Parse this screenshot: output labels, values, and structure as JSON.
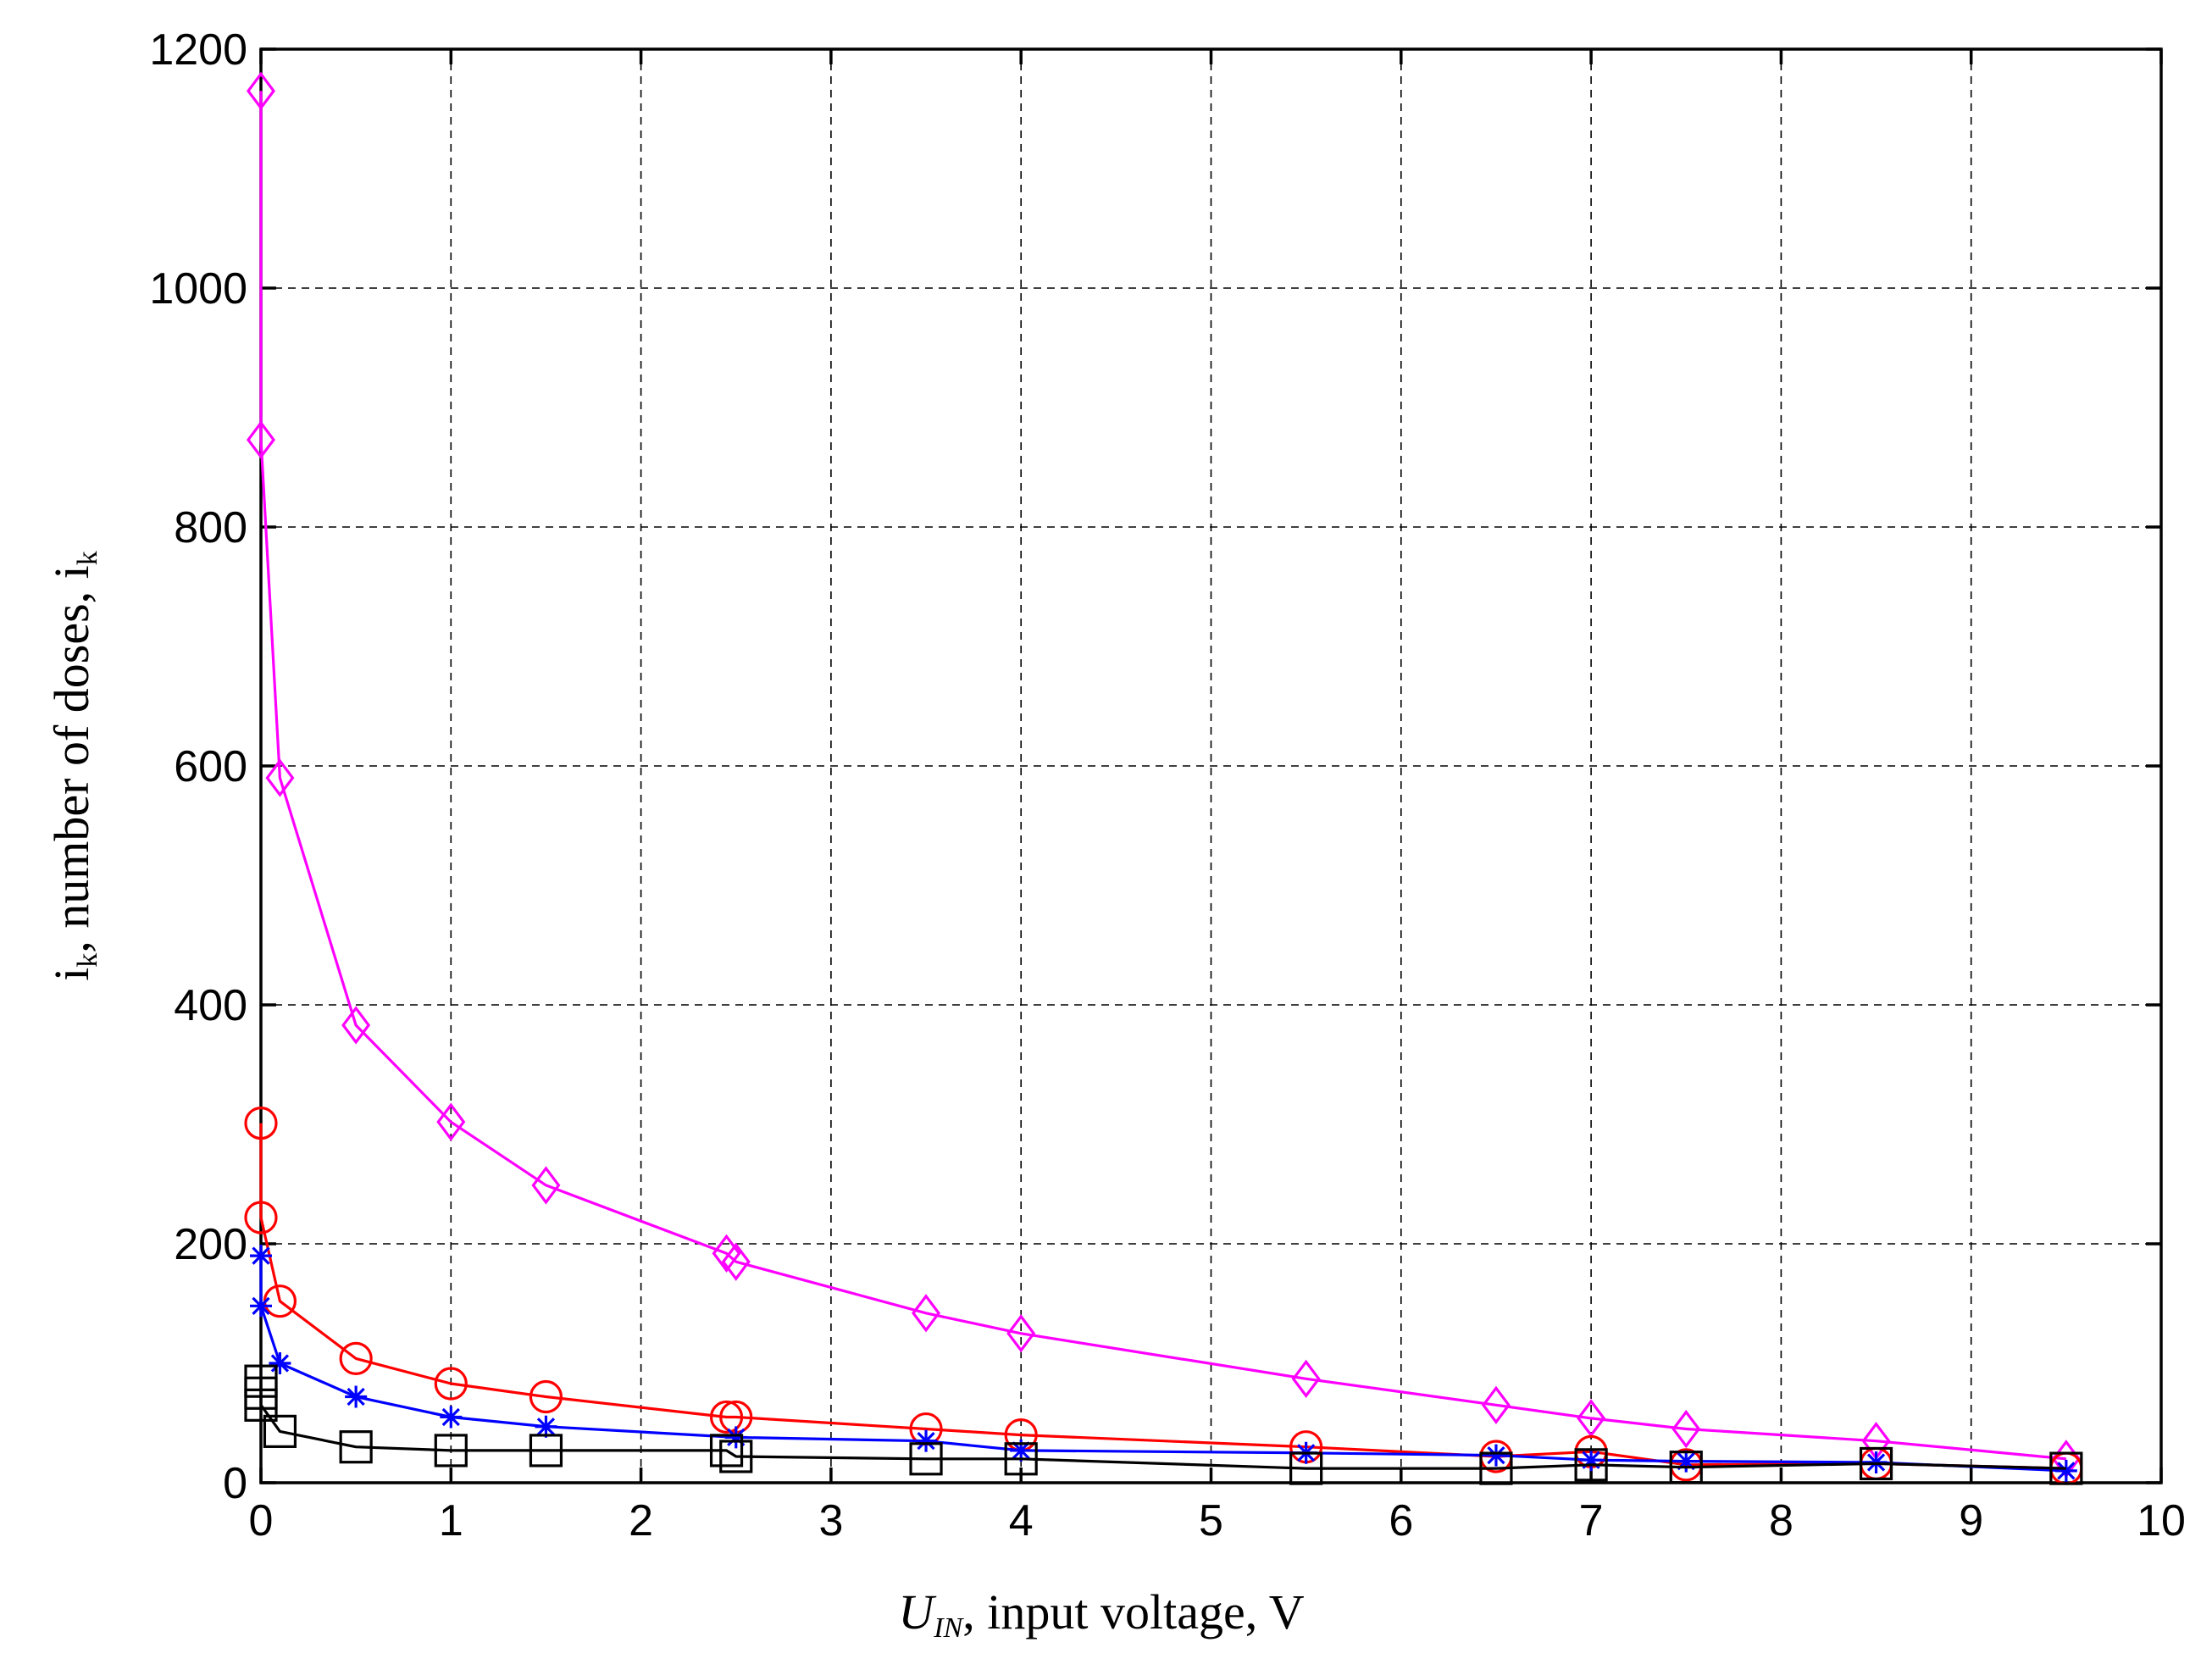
{
  "chart_data": {
    "type": "line",
    "xlabel": {
      "main": "U",
      "sub": "IN",
      "rest": ", input voltage, V"
    },
    "ylabel": {
      "pre": "i",
      "pre_sub": "k",
      "mid": ", number of doses,  i",
      "post_sub": "k"
    },
    "xlim": [
      0,
      10
    ],
    "ylim": [
      0,
      1200
    ],
    "xticks": [
      "0",
      "1",
      "2",
      "3",
      "4",
      "5",
      "6",
      "7",
      "8",
      "9",
      "10"
    ],
    "yticks": [
      "0",
      "200",
      "400",
      "600",
      "800",
      "1000",
      "1200"
    ],
    "grid": true,
    "legend": null,
    "series": [
      {
        "color": "#ff00ff",
        "marker": "diamond",
        "x": [
          0,
          0,
          0.1,
          0.5,
          1,
          1.5,
          2.45,
          2.5,
          3.5,
          4,
          5.5,
          6.5,
          7,
          7.5,
          8.5,
          9.5
        ],
        "y": [
          1165,
          873,
          590,
          383,
          302,
          249,
          192,
          185,
          142,
          125,
          87,
          65,
          54,
          45,
          35,
          20
        ]
      },
      {
        "color": "#ff0000",
        "marker": "circle",
        "x": [
          0,
          0,
          0.1,
          0.5,
          1,
          1.5,
          2.45,
          2.5,
          3.5,
          4,
          5.5,
          6.5,
          7,
          7.5,
          8.5,
          9.5
        ],
        "y": [
          301,
          222,
          152,
          104,
          83,
          72,
          55,
          55,
          45,
          40,
          30,
          22,
          26,
          15,
          16,
          12
        ]
      },
      {
        "color": "#0000ff",
        "marker": "asterisk",
        "x": [
          0,
          0,
          0.1,
          0.5,
          1,
          1.5,
          2.5,
          3.5,
          4,
          5.5,
          6.5,
          7,
          7.5,
          8.5,
          9.5
        ],
        "y": [
          190,
          148,
          100,
          72,
          55,
          47,
          38,
          35,
          27,
          25,
          23,
          19,
          18,
          17,
          10
        ]
      },
      {
        "color": "#000000",
        "marker": "square",
        "x": [
          0,
          0,
          0,
          0.1,
          0.5,
          1,
          1.5,
          2.45,
          2.5,
          3.5,
          4,
          5.5,
          6.5,
          7,
          7.5,
          8.5,
          9.5
        ],
        "y": [
          85,
          75,
          65,
          43,
          30,
          27,
          27,
          27,
          22,
          20,
          20,
          12,
          12,
          15,
          13,
          16,
          12
        ]
      }
    ]
  }
}
